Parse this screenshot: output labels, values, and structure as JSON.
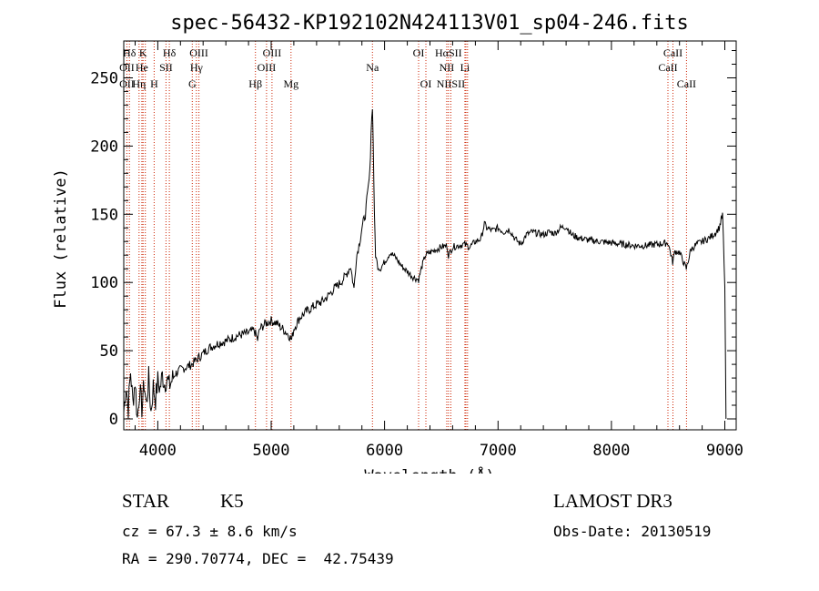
{
  "chart_data": {
    "type": "line",
    "title": "spec-56432-KP192102N424113V01_sp04-246.fits",
    "xlabel": "Wavelength (Å)",
    "ylabel": "Flux (relative)",
    "xlim": [
      3700,
      9100
    ],
    "ylim": [
      -8,
      277
    ],
    "xticks": [
      4000,
      5000,
      6000,
      7000,
      8000,
      9000
    ],
    "yticks": [
      0,
      50,
      100,
      150,
      200,
      250
    ],
    "grid": false,
    "series": [
      {
        "name": "spectrum",
        "points": [
          [
            3700,
            5
          ],
          [
            3720,
            25
          ],
          [
            3740,
            8
          ],
          [
            3760,
            35
          ],
          [
            3780,
            12
          ],
          [
            3800,
            28
          ],
          [
            3820,
            0
          ],
          [
            3840,
            22
          ],
          [
            3860,
            8
          ],
          [
            3880,
            26
          ],
          [
            3900,
            10
          ],
          [
            3920,
            30
          ],
          [
            3940,
            5
          ],
          [
            3960,
            24
          ],
          [
            3980,
            14
          ],
          [
            4000,
            28
          ],
          [
            4020,
            22
          ],
          [
            4040,
            32
          ],
          [
            4060,
            26
          ],
          [
            4080,
            30
          ],
          [
            4100,
            24
          ],
          [
            4150,
            33
          ],
          [
            4200,
            36
          ],
          [
            4250,
            38
          ],
          [
            4300,
            40
          ],
          [
            4350,
            44
          ],
          [
            4400,
            48
          ],
          [
            4450,
            52
          ],
          [
            4500,
            54
          ],
          [
            4550,
            56
          ],
          [
            4600,
            57
          ],
          [
            4650,
            59
          ],
          [
            4700,
            61
          ],
          [
            4750,
            62
          ],
          [
            4800,
            63
          ],
          [
            4850,
            65
          ],
          [
            4880,
            58
          ],
          [
            4900,
            66
          ],
          [
            4950,
            70
          ],
          [
            5000,
            72
          ],
          [
            5050,
            70
          ],
          [
            5100,
            66
          ],
          [
            5150,
            62
          ],
          [
            5180,
            58
          ],
          [
            5200,
            66
          ],
          [
            5250,
            74
          ],
          [
            5300,
            78
          ],
          [
            5350,
            81
          ],
          [
            5400,
            84
          ],
          [
            5450,
            86
          ],
          [
            5500,
            90
          ],
          [
            5550,
            95
          ],
          [
            5600,
            99
          ],
          [
            5650,
            104
          ],
          [
            5700,
            112
          ],
          [
            5730,
            95
          ],
          [
            5750,
            118
          ],
          [
            5780,
            130
          ],
          [
            5800,
            140
          ],
          [
            5830,
            150
          ],
          [
            5850,
            165
          ],
          [
            5870,
            180
          ],
          [
            5880,
            210
          ],
          [
            5893,
            230
          ],
          [
            5900,
            200
          ],
          [
            5910,
            150
          ],
          [
            5920,
            120
          ],
          [
            5940,
            112
          ],
          [
            5960,
            110
          ],
          [
            6000,
            115
          ],
          [
            6050,
            122
          ],
          [
            6100,
            118
          ],
          [
            6150,
            112
          ],
          [
            6200,
            108
          ],
          [
            6250,
            104
          ],
          [
            6300,
            102
          ],
          [
            6330,
            112
          ],
          [
            6360,
            120
          ],
          [
            6400,
            122
          ],
          [
            6450,
            124
          ],
          [
            6500,
            126
          ],
          [
            6550,
            127
          ],
          [
            6563,
            120
          ],
          [
            6600,
            126
          ],
          [
            6650,
            127
          ],
          [
            6700,
            128
          ],
          [
            6750,
            126
          ],
          [
            6800,
            130
          ],
          [
            6850,
            132
          ],
          [
            6880,
            143
          ],
          [
            6900,
            140
          ],
          [
            6950,
            138
          ],
          [
            7000,
            140
          ],
          [
            7050,
            137
          ],
          [
            7100,
            139
          ],
          [
            7150,
            132
          ],
          [
            7200,
            128
          ],
          [
            7250,
            135
          ],
          [
            7300,
            137
          ],
          [
            7350,
            136
          ],
          [
            7400,
            135
          ],
          [
            7450,
            137
          ],
          [
            7500,
            136
          ],
          [
            7550,
            140
          ],
          [
            7600,
            141
          ],
          [
            7650,
            135
          ],
          [
            7700,
            133
          ],
          [
            7800,
            131
          ],
          [
            7900,
            130
          ],
          [
            8000,
            129
          ],
          [
            8100,
            128
          ],
          [
            8200,
            127
          ],
          [
            8300,
            127
          ],
          [
            8400,
            128
          ],
          [
            8500,
            129
          ],
          [
            8540,
            115
          ],
          [
            8560,
            123
          ],
          [
            8600,
            122
          ],
          [
            8620,
            118
          ],
          [
            8660,
            110
          ],
          [
            8700,
            124
          ],
          [
            8750,
            128
          ],
          [
            8800,
            130
          ],
          [
            8850,
            132
          ],
          [
            8900,
            135
          ],
          [
            8950,
            140
          ],
          [
            8980,
            150
          ],
          [
            9000,
            95
          ],
          [
            9010,
            0
          ]
        ]
      }
    ],
    "lines": [
      {
        "label": "Hδ",
        "x": 3750,
        "row": 1
      },
      {
        "label": "OII",
        "x": 3727,
        "row": 2
      },
      {
        "label": "OII",
        "x": 3727,
        "row": 3
      },
      {
        "label": "K",
        "x": 3870,
        "row": 1
      },
      {
        "label": "He",
        "x": 3860,
        "row": 2
      },
      {
        "label": "Hη",
        "x": 3835,
        "row": 3
      },
      {
        "label": "Hδ",
        "x": 4102,
        "row": 1
      },
      {
        "label": "SII",
        "x": 4072,
        "row": 2
      },
      {
        "label": "H",
        "x": 3968,
        "row": 3
      },
      {
        "label": "OIII",
        "x": 4363,
        "row": 1
      },
      {
        "label": "Hγ",
        "x": 4340,
        "row": 2
      },
      {
        "label": "G",
        "x": 4304,
        "row": 3
      },
      {
        "label": "OIII",
        "x": 5007,
        "row": 1
      },
      {
        "label": "OIII",
        "x": 4959,
        "row": 2
      },
      {
        "label": "Hβ",
        "x": 4861,
        "row": 3
      },
      {
        "label": "Mg",
        "x": 5175,
        "row": 3
      },
      {
        "label": "Na",
        "x": 5893,
        "row": 2
      },
      {
        "label": "OI",
        "x": 6300,
        "row": 1
      },
      {
        "label": "OI",
        "x": 6364,
        "row": 3
      },
      {
        "label": "HαSII",
        "x": 6563,
        "row": 1
      },
      {
        "label": "NII",
        "x": 6548,
        "row": 2
      },
      {
        "label": "Li",
        "x": 6708,
        "row": 2
      },
      {
        "label": "NIISII",
        "x": 6584,
        "row": 3
      },
      {
        "label": "CaII",
        "x": 8542,
        "row": 1
      },
      {
        "label": "CaII",
        "x": 8498,
        "row": 2
      },
      {
        "label": "CaII",
        "x": 8662,
        "row": 3
      }
    ],
    "line_positions": [
      3727,
      3750,
      3835,
      3860,
      3870,
      3890,
      3968,
      4072,
      4102,
      4304,
      4340,
      4363,
      4861,
      4959,
      5007,
      5175,
      5893,
      6300,
      6364,
      6548,
      6563,
      6584,
      6708,
      6717,
      6731,
      8498,
      8542,
      8662
    ]
  },
  "info": {
    "object_class": "STAR",
    "subclass": "K5",
    "survey": "LAMOST DR3",
    "velocity": "cz = 67.3 ± 8.6 km/s",
    "obs_date": "Obs-Date: 20130519",
    "coords": "RA = 290.70774, DEC =  42.75439"
  },
  "colors": {
    "axis": "#000000",
    "lines": "#cc2200",
    "spectrum": "#000000"
  }
}
